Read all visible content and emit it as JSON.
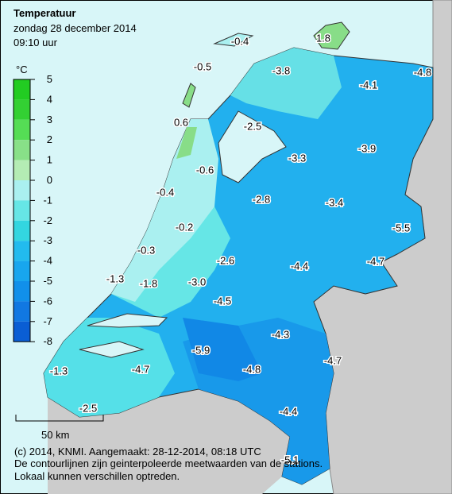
{
  "header": {
    "title": "Temperatuur",
    "date": "zondag 28 december 2014",
    "time": "09:10 uur"
  },
  "legend": {
    "unit": "°C",
    "ticks": [
      "5",
      "4",
      "3",
      "2",
      "1",
      "0",
      "-1",
      "-2",
      "-3",
      "-4",
      "-5",
      "-6",
      "-7",
      "-8"
    ]
  },
  "stations": [
    "-0.4",
    "1.8",
    "-0.5",
    "-3.8",
    "-4.1",
    "-4.8",
    "0.6",
    "-2.5",
    "-3.9",
    "-3.3",
    "-0.6",
    "-0.4",
    "-2.8",
    "-3.4",
    "-0.2",
    "-5.5",
    "-0.3",
    "-2.6",
    "-4.7",
    "-4.4",
    "-1.3",
    "-1.8",
    "-3.0",
    "-4.5",
    "-4.3",
    "-5.9",
    "-4.7",
    "-4.8",
    "-1.3",
    "-4.7",
    "-2.5",
    "-4.4",
    "-5.1"
  ],
  "scale_bar": "50 km",
  "footer": [
    "(c) 2014, KNMI. Aangemaakt: 28-12-2014, 08:18 UTC",
    "De contourlijnen zijn geinterpoleerde meetwaarden van de stations.",
    "Lokaal kunnen verschillen optreden."
  ]
}
